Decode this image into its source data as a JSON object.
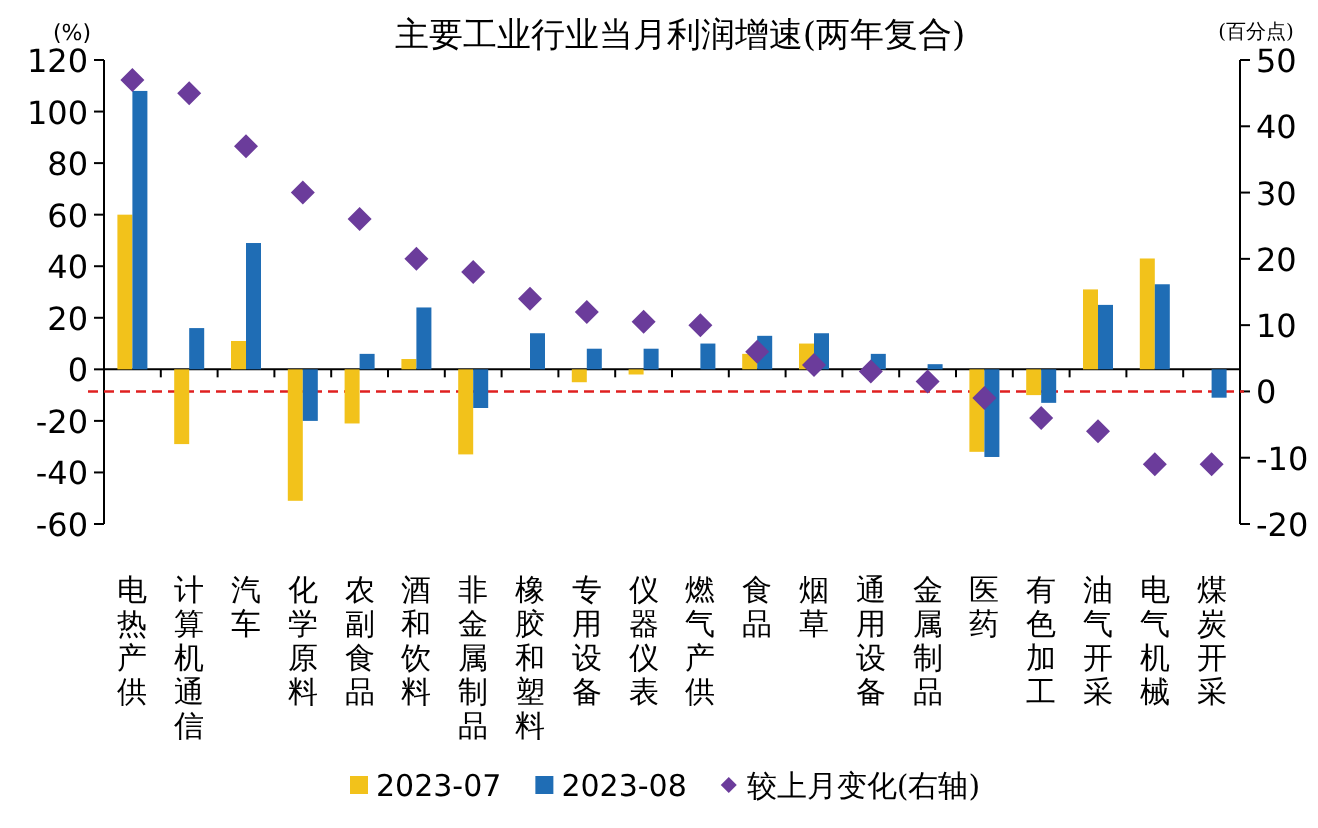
{
  "chart_data": {
    "type": "bar",
    "title": "主要工业行业当月利润增速(两年复合)",
    "ylabel": "(%)",
    "y2label": "(百分点)",
    "categories": [
      "电热产供",
      "计算机通信",
      "汽车",
      "化学原料",
      "农副食品",
      "酒和饮料",
      "非金属制品",
      "橡胶和塑料",
      "专用设备",
      "仪器仪表",
      "燃气产供",
      "食品",
      "烟草",
      "通用设备",
      "金属制品",
      "医药",
      "有色加工",
      "油气开采",
      "电气机械",
      "煤炭开采"
    ],
    "series": [
      {
        "name": "2023-07",
        "color": "#f2c21b",
        "values": [
          60,
          -29,
          11,
          -51,
          -21,
          4,
          -33,
          null,
          -5,
          -2,
          null,
          6,
          10,
          null,
          null,
          -32,
          -10,
          31,
          43,
          null
        ]
      },
      {
        "name": "2023-08",
        "color": "#1f6db5",
        "values": [
          108,
          16,
          49,
          -20,
          6,
          24,
          -15,
          14,
          8,
          8,
          10,
          13,
          14,
          6,
          2,
          -34,
          -13,
          25,
          33,
          -11
        ]
      },
      {
        "name": "较上月变化(右轴)",
        "type": "scatter",
        "axis": "y2",
        "marker": "diamond",
        "color": "#6b3c9b",
        "values": [
          47,
          45,
          37,
          30,
          26,
          20,
          18,
          14,
          12,
          10.5,
          10,
          6,
          4,
          3,
          1.5,
          -1,
          -4,
          -6,
          -11,
          -11
        ]
      }
    ],
    "ylim": [
      -60,
      120
    ],
    "yticks": [
      -60,
      -40,
      -20,
      0,
      20,
      40,
      60,
      80,
      100,
      120
    ],
    "y2lim": [
      -20,
      50
    ],
    "y2ticks": [
      -20,
      -10,
      0,
      10,
      20,
      30,
      40,
      50
    ],
    "ref_lines": [
      {
        "axis": "y2",
        "value": 0,
        "color": "#e02020",
        "line_style": "dashed"
      }
    ],
    "legend": "bottom"
  }
}
